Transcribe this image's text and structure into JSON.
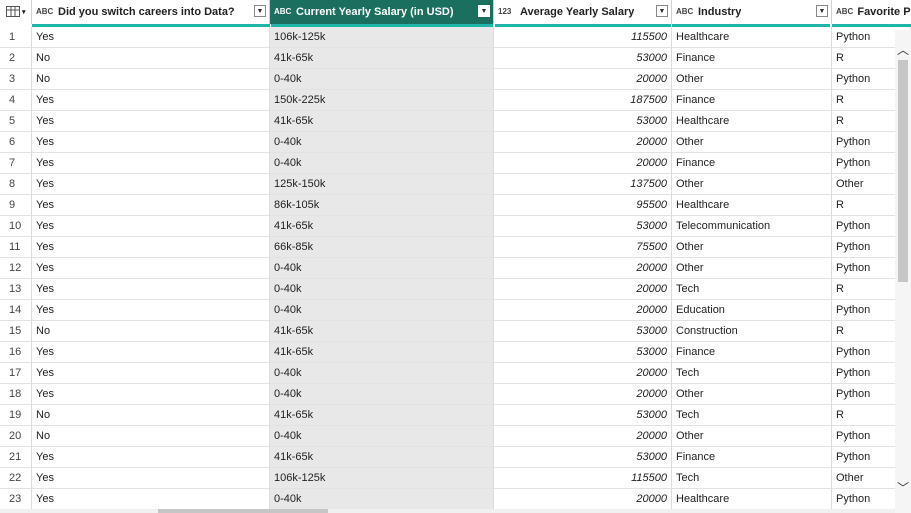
{
  "columns": [
    {
      "type_icon": "ABC",
      "label": "Did you switch careers into Data?"
    },
    {
      "type_icon": "ABC",
      "label": "Current Yearly Salary (in USD)"
    },
    {
      "type_icon": "123",
      "label": "Average Yearly Salary"
    },
    {
      "type_icon": "ABC",
      "label": "Industry"
    },
    {
      "type_icon": "ABC",
      "label": "Favorite Pr"
    }
  ],
  "rows": [
    [
      "1",
      "Yes",
      "106k-125k",
      "115500",
      "Healthcare",
      "Python"
    ],
    [
      "2",
      "No",
      "41k-65k",
      "53000",
      "Finance",
      "R"
    ],
    [
      "3",
      "No",
      "0-40k",
      "20000",
      "Other",
      "Python"
    ],
    [
      "4",
      "Yes",
      "150k-225k",
      "187500",
      "Finance",
      "R"
    ],
    [
      "5",
      "Yes",
      "41k-65k",
      "53000",
      "Healthcare",
      "R"
    ],
    [
      "6",
      "Yes",
      "0-40k",
      "20000",
      "Other",
      "Python"
    ],
    [
      "7",
      "Yes",
      "0-40k",
      "20000",
      "Finance",
      "Python"
    ],
    [
      "8",
      "Yes",
      "125k-150k",
      "137500",
      "Other",
      "Other"
    ],
    [
      "9",
      "Yes",
      "86k-105k",
      "95500",
      "Healthcare",
      "R"
    ],
    [
      "10",
      "Yes",
      "41k-65k",
      "53000",
      "Telecommunication",
      "Python"
    ],
    [
      "11",
      "Yes",
      "66k-85k",
      "75500",
      "Other",
      "Python"
    ],
    [
      "12",
      "Yes",
      "0-40k",
      "20000",
      "Other",
      "Python"
    ],
    [
      "13",
      "Yes",
      "0-40k",
      "20000",
      "Tech",
      "R"
    ],
    [
      "14",
      "Yes",
      "0-40k",
      "20000",
      "Education",
      "Python"
    ],
    [
      "15",
      "No",
      "41k-65k",
      "53000",
      "Construction",
      "R"
    ],
    [
      "16",
      "Yes",
      "41k-65k",
      "53000",
      "Finance",
      "Python"
    ],
    [
      "17",
      "Yes",
      "0-40k",
      "20000",
      "Tech",
      "Python"
    ],
    [
      "18",
      "Yes",
      "0-40k",
      "20000",
      "Other",
      "Python"
    ],
    [
      "19",
      "No",
      "41k-65k",
      "53000",
      "Tech",
      "R"
    ],
    [
      "20",
      "No",
      "0-40k",
      "20000",
      "Other",
      "Python"
    ],
    [
      "21",
      "Yes",
      "41k-65k",
      "53000",
      "Finance",
      "Python"
    ],
    [
      "22",
      "Yes",
      "106k-125k",
      "115500",
      "Tech",
      "Other"
    ],
    [
      "23",
      "Yes",
      "0-40k",
      "20000",
      "Healthcare",
      "Python"
    ]
  ],
  "selected_column_index": 1,
  "colors": {
    "selected_header": "#1b6f5f",
    "accent_bar": "#1fb5a8",
    "selected_cell": "#e8e8e8"
  }
}
